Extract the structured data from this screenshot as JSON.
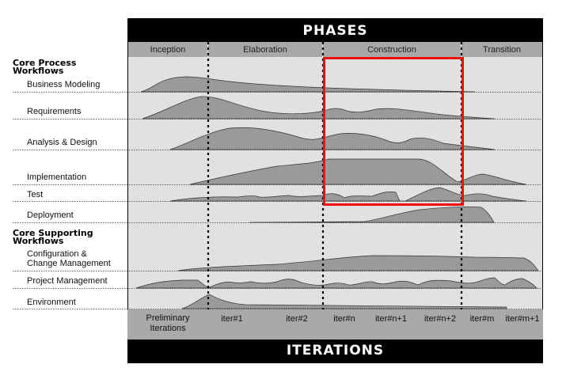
{
  "header": {
    "title": "PHASES"
  },
  "footer": {
    "title": "ITERATIONS"
  },
  "phases": [
    "Inception",
    "Elaboration",
    "Construction",
    "Transition"
  ],
  "sections": {
    "core_process": "Core Process\nWorkflows",
    "core_supporting": "Core Supporting\nWorkflows"
  },
  "workflows": [
    {
      "label": "Business Modeling"
    },
    {
      "label": "Requirements"
    },
    {
      "label": "Analysis & Design"
    },
    {
      "label": "Implementation"
    },
    {
      "label": "Test"
    },
    {
      "label": "Deployment"
    },
    {
      "label": "Configuration &\nChange Management"
    },
    {
      "label": "Project Management"
    },
    {
      "label": "Environment"
    }
  ],
  "iterations": [
    "Preliminary\nIterations",
    "iter#1",
    "iter#2",
    "iter#n",
    "iter#n+1",
    "iter#n+2",
    "iter#m",
    "iter#m+1"
  ],
  "colors": {
    "highlight": "#ee1111",
    "fill": "#9a9a9a",
    "band": "#a9a9a9",
    "background": "#e1e1e1"
  }
}
